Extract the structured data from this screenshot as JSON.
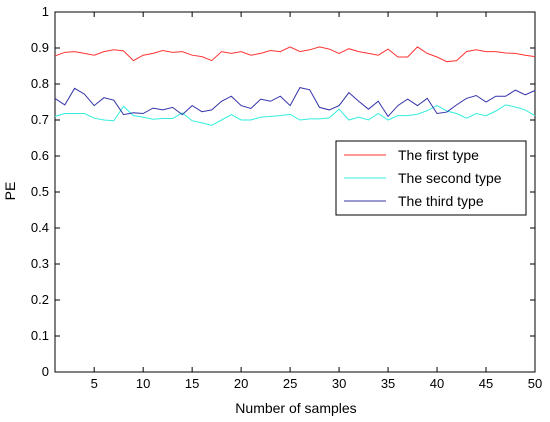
{
  "chart_data": {
    "type": "line",
    "xlabel": "Number of samples",
    "ylabel": "PE",
    "xlim": [
      1,
      50
    ],
    "ylim": [
      0,
      1
    ],
    "xticks": [
      5,
      10,
      15,
      20,
      25,
      30,
      35,
      40,
      45,
      50
    ],
    "yticks": [
      0,
      0.1,
      0.2,
      0.3,
      0.4,
      0.5,
      0.6,
      0.7,
      0.8,
      0.9,
      1
    ],
    "grid": false,
    "legend_position": "right",
    "x": [
      1,
      2,
      3,
      4,
      5,
      6,
      7,
      8,
      9,
      10,
      11,
      12,
      13,
      14,
      15,
      16,
      17,
      18,
      19,
      20,
      21,
      22,
      23,
      24,
      25,
      26,
      27,
      28,
      29,
      30,
      31,
      32,
      33,
      34,
      35,
      36,
      37,
      38,
      39,
      40,
      41,
      42,
      43,
      44,
      45,
      46,
      47,
      48,
      49,
      50
    ],
    "series": [
      {
        "name": "The first type",
        "color": "#ff3333",
        "values": [
          0.878,
          0.888,
          0.89,
          0.885,
          0.88,
          0.89,
          0.895,
          0.892,
          0.865,
          0.88,
          0.885,
          0.893,
          0.888,
          0.89,
          0.88,
          0.876,
          0.865,
          0.89,
          0.885,
          0.89,
          0.88,
          0.885,
          0.893,
          0.89,
          0.903,
          0.89,
          0.895,
          0.903,
          0.897,
          0.885,
          0.898,
          0.89,
          0.885,
          0.88,
          0.897,
          0.875,
          0.875,
          0.903,
          0.885,
          0.875,
          0.862,
          0.865,
          0.89,
          0.895,
          0.89,
          0.89,
          0.886,
          0.885,
          0.88,
          0.876
        ]
      },
      {
        "name": "The second type",
        "color": "#33eedd",
        "values": [
          0.71,
          0.718,
          0.718,
          0.718,
          0.705,
          0.7,
          0.698,
          0.738,
          0.712,
          0.708,
          0.702,
          0.704,
          0.704,
          0.72,
          0.698,
          0.692,
          0.685,
          0.7,
          0.715,
          0.7,
          0.7,
          0.708,
          0.71,
          0.712,
          0.716,
          0.7,
          0.703,
          0.703,
          0.706,
          0.73,
          0.7,
          0.708,
          0.7,
          0.718,
          0.7,
          0.712,
          0.712,
          0.716,
          0.726,
          0.74,
          0.725,
          0.718,
          0.705,
          0.718,
          0.712,
          0.725,
          0.742,
          0.736,
          0.728,
          0.712
        ]
      },
      {
        "name": "The third type",
        "color": "#3333aa",
        "values": [
          0.76,
          0.742,
          0.788,
          0.772,
          0.74,
          0.762,
          0.755,
          0.715,
          0.72,
          0.718,
          0.733,
          0.728,
          0.735,
          0.715,
          0.74,
          0.723,
          0.728,
          0.752,
          0.766,
          0.74,
          0.732,
          0.758,
          0.752,
          0.766,
          0.74,
          0.79,
          0.784,
          0.735,
          0.728,
          0.74,
          0.776,
          0.752,
          0.73,
          0.752,
          0.71,
          0.74,
          0.758,
          0.74,
          0.76,
          0.718,
          0.722,
          0.742,
          0.76,
          0.768,
          0.75,
          0.766,
          0.766,
          0.783,
          0.77,
          0.782
        ]
      }
    ]
  }
}
